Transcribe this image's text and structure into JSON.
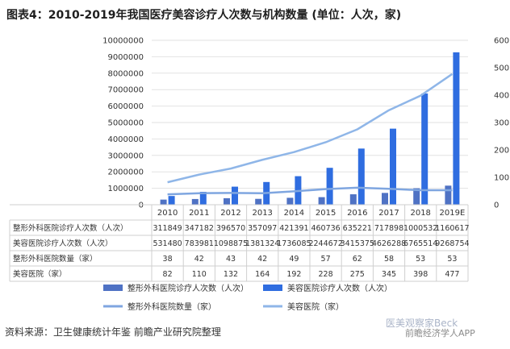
{
  "title": "图表4：2010-2019年我国医疗美容诊疗人次数与机构数量 (单位：人次，家)",
  "source": "资料来源：卫生健康统计年鉴 前瞻产业研究院整理",
  "watermark_top": "医美观察家Beck",
  "watermark_bottom": "前瞻经济学人APP",
  "colors": {
    "bar_plastic": "#4f72c4",
    "bar_cosmetic": "#2f6de0",
    "line_plastic": "#7fa6e0",
    "line_cosmetic": "#8fb6e8",
    "grid": "#e2e2e2"
  },
  "chart_data": {
    "type": "bar",
    "categories": [
      "2010",
      "2011",
      "2012",
      "2013",
      "2014",
      "2015",
      "2016",
      "2017",
      "2018",
      "2019E"
    ],
    "left_axis": {
      "min": 0,
      "max": 10000000,
      "step": 1000000,
      "ticks": [
        "0",
        "1000000",
        "2000000",
        "3000000",
        "4000000",
        "5000000",
        "6000000",
        "7000000",
        "8000000",
        "9000000",
        "10000000"
      ]
    },
    "right_axis": {
      "min": 0,
      "max": 600,
      "step": 100,
      "ticks": [
        "0",
        "100",
        "200",
        "300",
        "400",
        "500",
        "600"
      ]
    },
    "grid": true,
    "legend_position": "bottom",
    "series": [
      {
        "name": "整形外科医院诊疗人次数（人次）",
        "type": "bar",
        "axis": "left",
        "values": [
          311849,
          347182,
          396570,
          357097,
          421391,
          460736,
          635221,
          717898,
          1000532,
          1160617
        ],
        "labels": [
          "311849",
          "347182",
          "396570",
          "357097",
          "421391",
          "460736",
          "635221",
          "717898",
          "1000532",
          "1160617"
        ]
      },
      {
        "name": "美容医院诊疗人次数（人次）",
        "type": "bar",
        "axis": "left",
        "values": [
          531480,
          783981,
          1098875,
          1381324,
          1736085,
          2244672,
          3415375,
          4626288,
          6765514,
          9268754
        ],
        "labels": [
          "531480",
          "783981",
          "1098875",
          "1381324",
          "1736085",
          "2244672",
          "3415375",
          "4626288",
          "6765514",
          "9268754"
        ]
      },
      {
        "name": "整形外科医院数量（家）",
        "type": "line",
        "axis": "right",
        "values": [
          38,
          42,
          43,
          42,
          49,
          57,
          62,
          58,
          53,
          53
        ],
        "labels": [
          "38",
          "42",
          "43",
          "42",
          "49",
          "57",
          "62",
          "58",
          "53",
          "53"
        ]
      },
      {
        "name": "美容医院（家）",
        "type": "line",
        "axis": "right",
        "values": [
          82,
          110,
          132,
          164,
          192,
          228,
          275,
          345,
          398,
          477
        ],
        "labels": [
          "82",
          "110",
          "132",
          "164",
          "192",
          "228",
          "275",
          "345",
          "398",
          "477"
        ]
      }
    ],
    "table_row_labels": [
      "整形外科医院诊疗人次数（人次）",
      "美容医院诊疗人次数（人次）",
      "整形外科医院数量（家）",
      "美容医院（家）"
    ]
  }
}
